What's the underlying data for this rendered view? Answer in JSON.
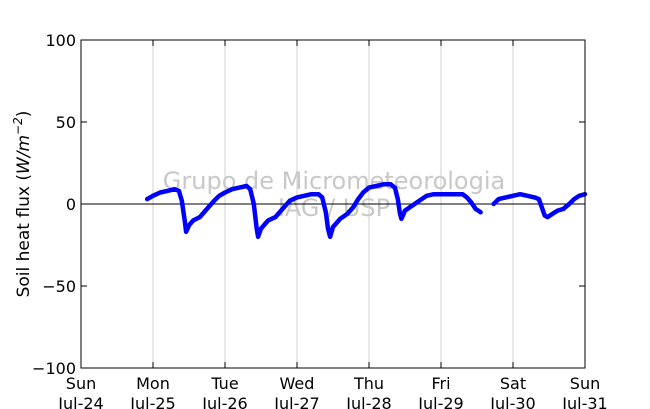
{
  "chart_data": {
    "type": "line",
    "title": "",
    "xlabel": "",
    "ylabel": "Soil heat flux (W/m⁻²)",
    "ylabel_parts": {
      "prefix": "Soil heat flux (",
      "math": "W/m",
      "sup": "−2",
      "suffix": ")"
    },
    "xlim": [
      0,
      7
    ],
    "ylim": [
      -100,
      100
    ],
    "yticks": [
      -100,
      -50,
      0,
      50,
      100
    ],
    "ytick_labels": [
      "−100",
      "−50",
      "0",
      "50",
      "100"
    ],
    "xticks": [
      {
        "x": 0,
        "day": "Sun",
        "date": "Jul-24"
      },
      {
        "x": 1,
        "day": "Mon",
        "date": "Jul-25"
      },
      {
        "x": 2,
        "day": "Tue",
        "date": "Jul-26"
      },
      {
        "x": 3,
        "day": "Wed",
        "date": "Jul-27"
      },
      {
        "x": 4,
        "day": "Thu",
        "date": "Jul-28"
      },
      {
        "x": 5,
        "day": "Fri",
        "date": "Jul-29"
      },
      {
        "x": 6,
        "day": "Sat",
        "date": "Jul-30"
      },
      {
        "x": 7,
        "day": "Sun",
        "date": "Jul-31"
      }
    ],
    "grid": "vertical",
    "zero_line": true,
    "series_color": "#0000ff",
    "watermark": [
      "Grupo de Micrometeorologia",
      "IAG / USP"
    ],
    "segments": [
      [
        [
          0.92,
          3
        ],
        [
          1.0,
          5
        ],
        [
          1.1,
          7
        ],
        [
          1.2,
          8
        ],
        [
          1.3,
          9
        ],
        [
          1.36,
          8
        ],
        [
          1.4,
          2
        ],
        [
          1.44,
          -10
        ],
        [
          1.46,
          -17
        ],
        [
          1.5,
          -13
        ],
        [
          1.56,
          -10
        ],
        [
          1.65,
          -8
        ],
        [
          1.75,
          -3
        ],
        [
          1.85,
          2
        ],
        [
          1.92,
          5
        ],
        [
          2.0,
          7
        ],
        [
          2.1,
          9
        ],
        [
          2.2,
          10
        ],
        [
          2.3,
          11
        ],
        [
          2.35,
          9
        ],
        [
          2.4,
          0
        ],
        [
          2.44,
          -15
        ],
        [
          2.46,
          -20
        ],
        [
          2.5,
          -15
        ],
        [
          2.6,
          -10
        ],
        [
          2.7,
          -8
        ],
        [
          2.8,
          -3
        ],
        [
          2.9,
          2
        ],
        [
          3.0,
          4
        ],
        [
          3.1,
          5
        ],
        [
          3.2,
          6
        ],
        [
          3.3,
          6
        ],
        [
          3.35,
          4
        ],
        [
          3.4,
          -5
        ],
        [
          3.43,
          -15
        ],
        [
          3.46,
          -20
        ],
        [
          3.5,
          -14
        ],
        [
          3.6,
          -9
        ],
        [
          3.7,
          -6
        ],
        [
          3.78,
          -2
        ],
        [
          3.85,
          3
        ],
        [
          3.92,
          7
        ],
        [
          4.0,
          10
        ],
        [
          4.1,
          11
        ],
        [
          4.2,
          12
        ],
        [
          4.3,
          12
        ],
        [
          4.36,
          10
        ],
        [
          4.4,
          3
        ],
        [
          4.43,
          -6
        ],
        [
          4.45,
          -9
        ],
        [
          4.5,
          -4
        ],
        [
          4.6,
          -1
        ],
        [
          4.7,
          2
        ],
        [
          4.8,
          5
        ],
        [
          4.9,
          6
        ],
        [
          5.0,
          6
        ],
        [
          5.1,
          6
        ],
        [
          5.2,
          6
        ],
        [
          5.3,
          6
        ],
        [
          5.36,
          4
        ],
        [
          5.42,
          1
        ],
        [
          5.48,
          -3
        ],
        [
          5.55,
          -5
        ]
      ],
      [
        [
          5.73,
          0
        ],
        [
          5.8,
          3
        ],
        [
          5.9,
          4
        ],
        [
          6.0,
          5
        ],
        [
          6.1,
          6
        ],
        [
          6.2,
          5
        ],
        [
          6.3,
          4
        ],
        [
          6.36,
          3
        ],
        [
          6.4,
          -2
        ],
        [
          6.44,
          -7
        ],
        [
          6.48,
          -8
        ],
        [
          6.55,
          -6
        ],
        [
          6.62,
          -4
        ],
        [
          6.7,
          -3
        ],
        [
          6.78,
          0
        ],
        [
          6.85,
          3
        ],
        [
          6.92,
          5
        ],
        [
          7.0,
          6
        ]
      ]
    ]
  }
}
